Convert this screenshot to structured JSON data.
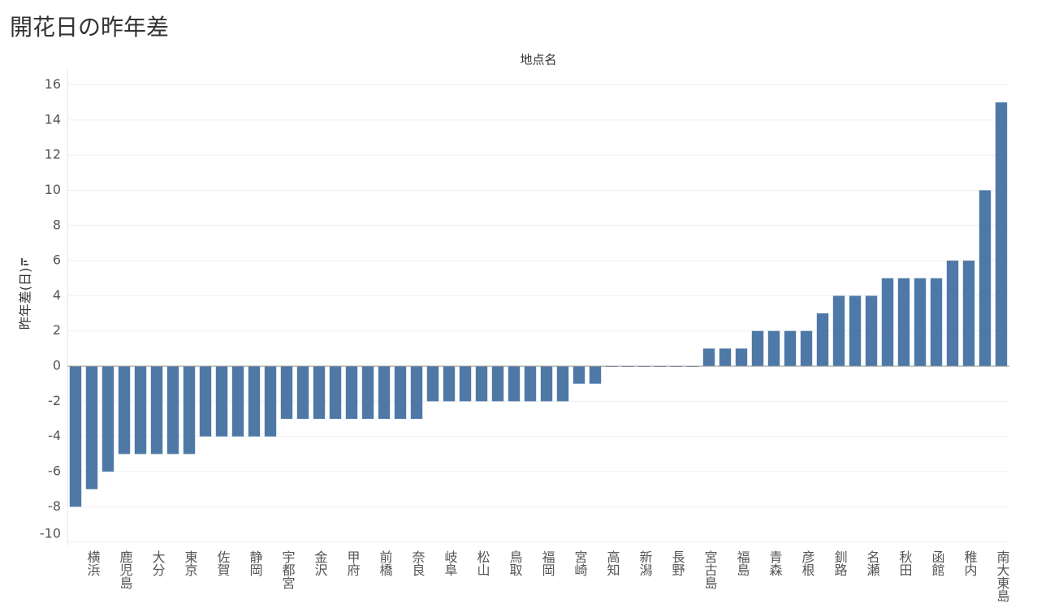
{
  "chart_data": {
    "type": "bar",
    "title": "開花日の昨年差",
    "x_label": "地点名",
    "y_label": "昨年差(日)",
    "categories": [
      null,
      "横浜",
      null,
      "鹿児島",
      null,
      "大分",
      null,
      "東京",
      null,
      "佐賀",
      null,
      "静岡",
      null,
      "宇都宮",
      null,
      "金沢",
      null,
      "甲府",
      null,
      "前橋",
      null,
      "奈良",
      null,
      "岐阜",
      null,
      "松山",
      null,
      "鳥取",
      null,
      "福岡",
      null,
      "宮崎",
      null,
      "高知",
      null,
      "新潟",
      null,
      "長野",
      null,
      "宮古島",
      null,
      "福島",
      null,
      "青森",
      null,
      "彦根",
      null,
      "釧路",
      null,
      "名瀬",
      null,
      "秋田",
      null,
      "函館",
      null,
      "稚内",
      null,
      "南大東島"
    ],
    "values": [
      -8,
      -7,
      -6,
      -5,
      -5,
      -5,
      -5,
      -5,
      -4,
      -4,
      -4,
      -4,
      -4,
      -3,
      -3,
      -3,
      -3,
      -3,
      -3,
      -3,
      -3,
      -3,
      -2,
      -2,
      -2,
      -2,
      -2,
      -2,
      -2,
      -2,
      -2,
      -1,
      -1,
      0,
      0,
      0,
      0,
      0,
      0,
      1,
      1,
      1,
      2,
      2,
      2,
      2,
      3,
      4,
      4,
      4,
      5,
      5,
      5,
      5,
      6,
      6,
      10,
      15
    ],
    "color": "#4e79a7",
    "ylim": [
      -10.2,
      16.9
    ],
    "yticks": [
      -10,
      -8,
      -6,
      -4,
      -2,
      0,
      2,
      4,
      6,
      8,
      10,
      12,
      14,
      16
    ],
    "grid": true
  }
}
